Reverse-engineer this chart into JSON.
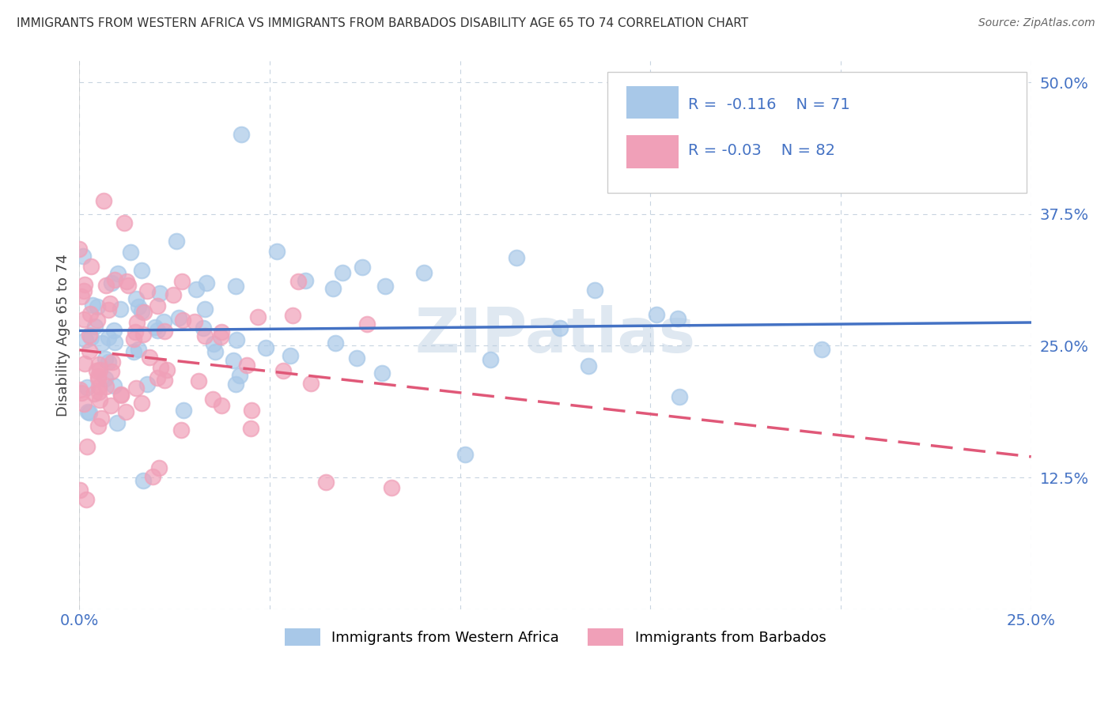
{
  "title": "IMMIGRANTS FROM WESTERN AFRICA VS IMMIGRANTS FROM BARBADOS DISABILITY AGE 65 TO 74 CORRELATION CHART",
  "source": "Source: ZipAtlas.com",
  "ylabel": "Disability Age 65 to 74",
  "xlim": [
    0.0,
    0.25
  ],
  "ylim": [
    0.0,
    0.52
  ],
  "xtick_vals": [
    0.0,
    0.05,
    0.1,
    0.15,
    0.2,
    0.25
  ],
  "xtick_labels": [
    "0.0%",
    "",
    "",
    "",
    "",
    "25.0%"
  ],
  "ytick_vals": [
    0.0,
    0.125,
    0.25,
    0.375,
    0.5
  ],
  "ytick_labels": [
    "",
    "12.5%",
    "25.0%",
    "37.5%",
    "50.0%"
  ],
  "series1_color": "#a8c8e8",
  "series2_color": "#f0a0b8",
  "trendline1_color": "#4472c4",
  "trendline2_color": "#e05878",
  "R1": -0.116,
  "N1": 71,
  "R2": -0.03,
  "N2": 82,
  "watermark": "ZIPatlas",
  "legend1_label": "Immigrants from Western Africa",
  "legend2_label": "Immigrants from Barbados",
  "grid_color": "#c8d4e0",
  "tick_color": "#4472c4"
}
